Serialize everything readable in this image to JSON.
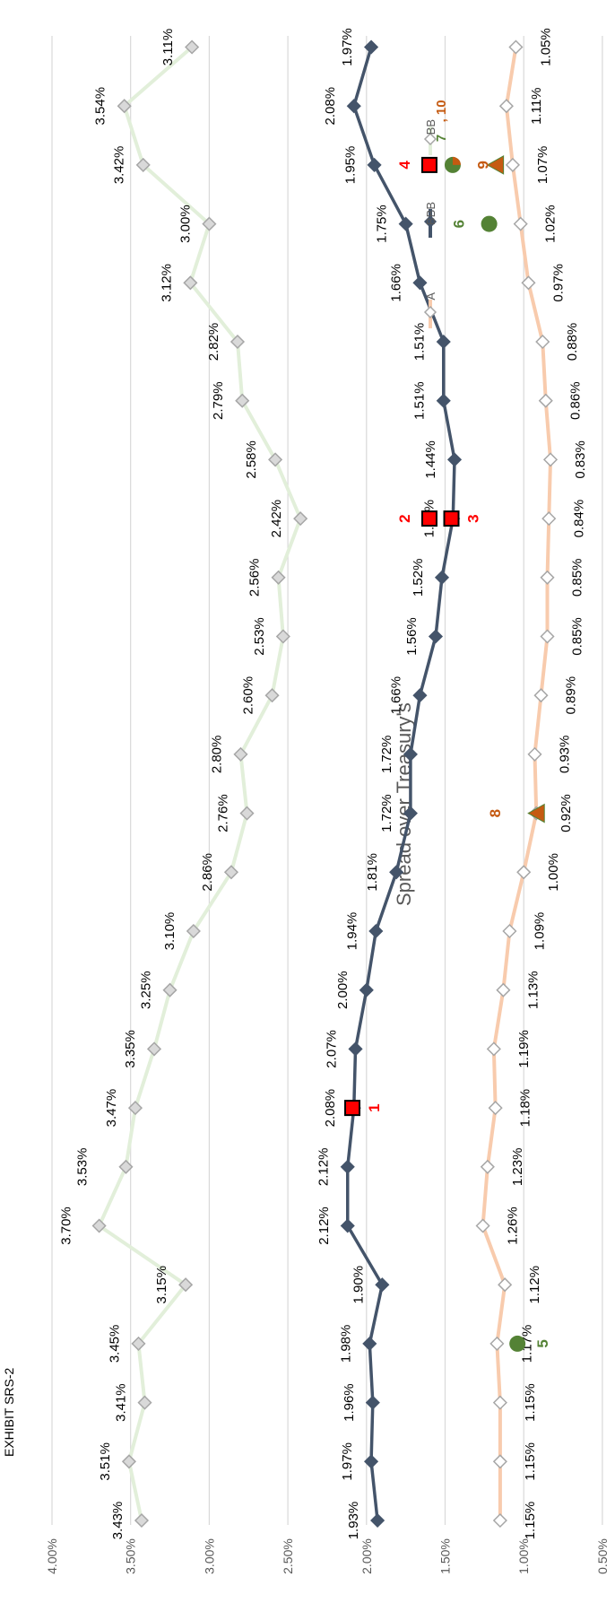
{
  "page": {
    "exhibit_label": "EXHIBIT SRS-2"
  },
  "chart_data": {
    "type": "line",
    "title": "Spread over Treasury's",
    "ylim": [
      0.005,
      0.04
    ],
    "yticks": [
      "0.50%",
      "1.00%",
      "1.50%",
      "2.00%",
      "2.50%",
      "3.00%",
      "3.50%",
      "4.00%"
    ],
    "ytick_values": [
      0.005,
      0.01,
      0.015,
      0.02,
      0.025,
      0.03,
      0.035,
      0.04
    ],
    "grid": true,
    "legend_position": "top",
    "x": [
      1,
      2,
      3,
      4,
      5,
      6,
      7,
      8,
      9,
      10,
      11,
      12,
      13,
      14,
      15,
      16,
      17,
      18,
      19,
      20,
      21,
      22,
      23,
      24,
      25,
      26
    ],
    "series": [
      {
        "name": "A",
        "color": "#f8cbad",
        "marker": "diamond",
        "values": [
          0.0115,
          0.0115,
          0.0115,
          0.0117,
          0.0112,
          0.0126,
          0.0123,
          0.0118,
          0.0119,
          0.0113,
          0.0109,
          0.01,
          0.0092,
          0.0093,
          0.0089,
          0.0085,
          0.0085,
          0.0084,
          0.0083,
          0.0086,
          0.0088,
          0.0097,
          0.0102,
          0.0107,
          0.0111,
          0.0105
        ],
        "labels": [
          "1.15%",
          "1.15%",
          "1.15%",
          "1.17%",
          "1.12%",
          "1.26%",
          "1.23%",
          "1.18%",
          "1.19%",
          "1.13%",
          "1.09%",
          "1.00%",
          "0.92%",
          "0.93%",
          "0.89%",
          "0.85%",
          "0.85%",
          "0.84%",
          "0.83%",
          "0.86%",
          "0.88%",
          "0.97%",
          "1.02%",
          "1.07%",
          "1.11%",
          "1.05%"
        ]
      },
      {
        "name": "BBB",
        "color": "#44546a",
        "marker": "diamond",
        "values": [
          0.0193,
          0.0197,
          0.0196,
          0.0198,
          0.019,
          0.0212,
          0.0212,
          0.0208,
          0.0207,
          0.02,
          0.0194,
          0.0181,
          0.0172,
          0.0172,
          0.0166,
          0.0156,
          0.0152,
          0.0145,
          0.0144,
          0.0151,
          0.0151,
          0.0166,
          0.0175,
          0.0195,
          0.0208,
          0.0197
        ],
        "labels": [
          "1.93%",
          "1.97%",
          "1.96%",
          "1.98%",
          "1.90%",
          "2.12%",
          "2.12%",
          "2.08%",
          "2.07%",
          "2.00%",
          "1.94%",
          "1.81%",
          "1.72%",
          "1.72%",
          "1.66%",
          "1.56%",
          "1.52%",
          "1.45%",
          "1.44%",
          "1.51%",
          "1.51%",
          "1.66%",
          "1.75%",
          "1.95%",
          "2.08%",
          "1.97%"
        ]
      },
      {
        "name": "BB",
        "color": "#e2efda",
        "marker": "diamond",
        "values": [
          0.0343,
          0.0351,
          0.0341,
          0.0345,
          0.0315,
          0.037,
          0.0353,
          0.0347,
          0.0335,
          0.0325,
          0.031,
          0.0286,
          0.0276,
          0.028,
          0.026,
          0.0253,
          0.0256,
          0.0242,
          0.0258,
          0.0279,
          0.0282,
          0.0312,
          0.03,
          0.0342,
          0.0354,
          0.0311
        ],
        "labels": [
          "3.43%",
          "3.51%",
          "3.41%",
          "3.45%",
          "3.15%",
          "3.70%",
          "3.53%",
          "3.47%",
          "3.35%",
          "3.25%",
          "3.10%",
          "2.86%",
          "2.76%",
          "2.80%",
          "2.60%",
          "2.53%",
          "2.56%",
          "2.42%",
          "2.58%",
          "2.79%",
          "2.82%",
          "3.12%",
          "3.00%",
          "3.42%",
          "3.54%",
          "3.11%"
        ]
      }
    ],
    "annotations": [
      {
        "label": "1",
        "shape": "square",
        "x": 8,
        "y": 0.0209,
        "color": "#ff0000"
      },
      {
        "label": "2",
        "shape": "square",
        "x": 18,
        "y": 0.016,
        "color": "#ff0000"
      },
      {
        "label": "3",
        "shape": "square",
        "x": 18,
        "y": 0.0146,
        "color": "#ff0000"
      },
      {
        "label": "4",
        "shape": "square",
        "x": 24,
        "y": 0.016,
        "color": "#ff0000"
      },
      {
        "label": "5",
        "shape": "circle",
        "x": 4,
        "y": 0.0104,
        "color": "#548235"
      },
      {
        "label": "6",
        "shape": "circle",
        "x": 23,
        "y": 0.0122,
        "color": "#548235"
      },
      {
        "label": "7, 10",
        "shape": "pie",
        "x": 24,
        "y": 0.016,
        "color": "#548235"
      },
      {
        "label": "8",
        "shape": "triangle",
        "x": 13,
        "y": 0.0092,
        "color": "#c55a11"
      },
      {
        "label": "9",
        "shape": "triangle",
        "x": 24,
        "y": 0.0118,
        "color": "#c55a11"
      }
    ]
  }
}
